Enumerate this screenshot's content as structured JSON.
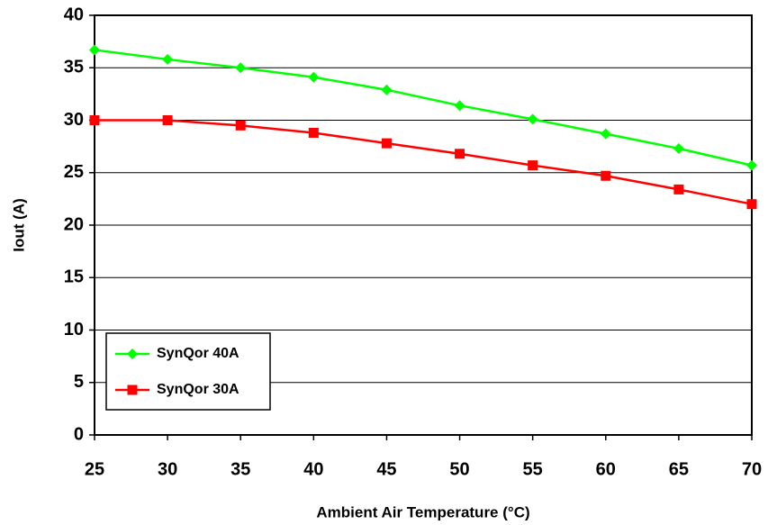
{
  "chart_data": {
    "type": "line",
    "x_label": "Ambient Air Temperature (°C)",
    "y_label": "Iout (A)",
    "x": [
      25,
      30,
      35,
      40,
      45,
      50,
      55,
      60,
      65,
      70
    ],
    "xlim": [
      25,
      70
    ],
    "xticks": [
      25,
      30,
      35,
      40,
      45,
      50,
      55,
      60,
      65,
      70
    ],
    "ylim": [
      0,
      40
    ],
    "yticks": [
      0,
      5,
      10,
      15,
      20,
      25,
      30,
      35,
      40
    ],
    "grid": true,
    "legend": "lower left",
    "series": [
      {
        "name": "SynQor 40A",
        "color": "#00ff00",
        "marker": "diamond",
        "values": [
          36.7,
          35.8,
          35.0,
          34.1,
          32.9,
          31.4,
          30.1,
          28.7,
          27.3,
          25.7
        ]
      },
      {
        "name": "SynQor 30A",
        "color": "#ff0000",
        "marker": "square",
        "values": [
          30.0,
          30.0,
          29.5,
          28.8,
          27.8,
          26.8,
          25.7,
          24.7,
          23.4,
          22.0
        ]
      }
    ]
  }
}
